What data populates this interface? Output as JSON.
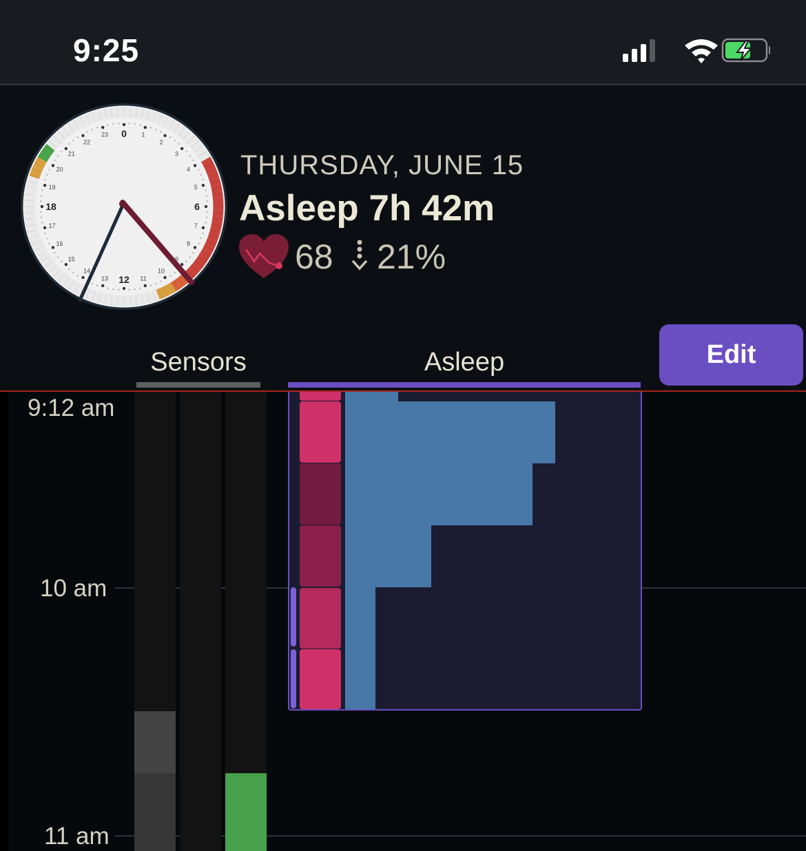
{
  "status_bar": {
    "time": "9:25",
    "icons": [
      "cellular-signal-icon",
      "wifi-icon",
      "battery-charging-icon"
    ]
  },
  "header": {
    "clock": {
      "numbers_major": [
        "0",
        "6",
        "12",
        "18"
      ],
      "numbers_minor": [
        "1",
        "2",
        "3",
        "4",
        "5",
        "7",
        "8",
        "9",
        "10",
        "11",
        "13",
        "14",
        "15",
        "16",
        "17",
        "19",
        "20",
        "21",
        "22",
        "23"
      ]
    },
    "date": "THURSDAY, JUNE 15",
    "title": "Asleep 7h 42m",
    "heart_rate": "68",
    "heart_icon": "heart-rate-icon",
    "drop_icon": "dotted-down-arrow-icon",
    "drop_value": "21%"
  },
  "tabs": {
    "sensors": "Sensors",
    "asleep": "Asleep",
    "active": "Asleep"
  },
  "edit_button": "Edit",
  "timeline": {
    "labels": {
      "now": "9:12 am",
      "ten": "10 am",
      "eleven": "11 am"
    }
  },
  "colors": {
    "accent": "#6a4fc3",
    "now_line": "#a8261f",
    "sleep_bar": "#4878a8",
    "heart": "#7a1d37",
    "sensor_green": "#47a04a"
  }
}
